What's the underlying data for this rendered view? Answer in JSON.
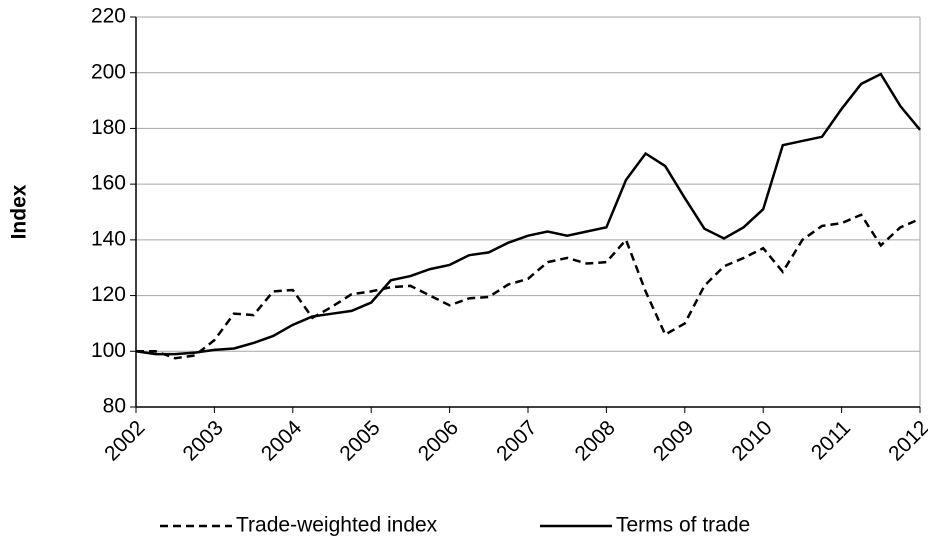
{
  "chart_data": {
    "type": "line",
    "y_label": "Index",
    "x": [
      2002,
      2002.25,
      2002.5,
      2002.75,
      2003,
      2003.25,
      2003.5,
      2003.75,
      2004,
      2004.25,
      2004.5,
      2004.75,
      2005,
      2005.25,
      2005.5,
      2005.75,
      2006,
      2006.25,
      2006.5,
      2006.75,
      2007,
      2007.25,
      2007.5,
      2007.75,
      2008,
      2008.25,
      2008.5,
      2008.75,
      2009,
      2009.25,
      2009.5,
      2009.75,
      2010,
      2010.25,
      2010.5,
      2010.75,
      2011,
      2011.25,
      2011.5,
      2011.75,
      2012
    ],
    "series": [
      {
        "name": "Trade-weighted index",
        "color": "#000000",
        "dashed": true,
        "values": [
          100,
          100,
          97.5,
          98.5,
          104,
          113.5,
          113,
          121.5,
          122,
          112,
          116,
          120.5,
          121.5,
          123,
          123.5,
          120,
          116.5,
          119,
          119.5,
          124,
          126,
          132,
          133.5,
          131.5,
          132,
          140,
          121.5,
          106,
          110,
          123.5,
          130.5,
          133.5,
          137,
          128.5,
          140,
          145,
          146,
          149,
          138,
          144.5,
          147.5
        ]
      },
      {
        "name": "Terms of trade",
        "color": "#000000",
        "dashed": false,
        "values": [
          100,
          99,
          99,
          99.5,
          100.5,
          101,
          103,
          105.5,
          109.5,
          112.5,
          113.5,
          114.5,
          117.5,
          125.5,
          127,
          129.5,
          131,
          134.5,
          135.5,
          139,
          141.5,
          143,
          141.5,
          143,
          144.5,
          161.5,
          171,
          166.5,
          155,
          144,
          140.5,
          144.5,
          151,
          174,
          175.5,
          177,
          187,
          196,
          199.5,
          188,
          179.5
        ]
      }
    ],
    "xlim": [
      2002,
      2012
    ],
    "xticks": [
      2002,
      2003,
      2004,
      2005,
      2006,
      2007,
      2008,
      2009,
      2010,
      2011,
      2012
    ],
    "ylim": [
      80,
      220
    ],
    "yticks": [
      80,
      100,
      120,
      140,
      160,
      180,
      200,
      220
    ],
    "grid": true,
    "legend": "bottom"
  }
}
